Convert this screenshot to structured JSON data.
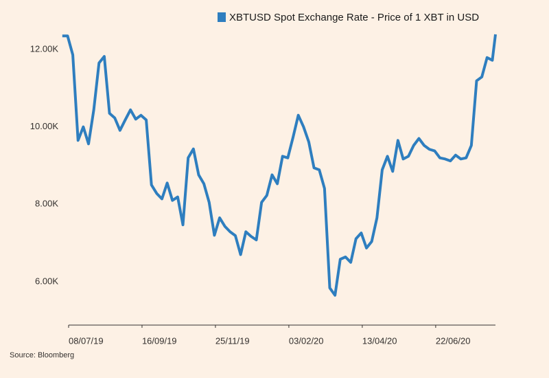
{
  "chart_data": {
    "type": "line",
    "legend_position": "top",
    "source": "Source: Bloomberg",
    "x": [
      "02/07/19",
      "07/07/19",
      "12/07/19",
      "17/07/19",
      "22/07/19",
      "27/07/19",
      "01/08/19",
      "06/08/19",
      "11/08/19",
      "16/08/19",
      "21/08/19",
      "26/08/19",
      "31/08/19",
      "05/09/19",
      "10/09/19",
      "15/09/19",
      "20/09/19",
      "25/09/19",
      "30/09/19",
      "05/10/19",
      "10/10/19",
      "15/10/19",
      "20/10/19",
      "25/10/19",
      "30/10/19",
      "04/11/19",
      "09/11/19",
      "14/11/19",
      "19/11/19",
      "24/11/19",
      "29/11/19",
      "04/12/19",
      "09/12/19",
      "14/12/19",
      "19/12/19",
      "24/12/19",
      "29/12/19",
      "03/01/20",
      "08/01/20",
      "13/01/20",
      "18/01/20",
      "23/01/20",
      "28/01/20",
      "02/02/20",
      "07/02/20",
      "12/02/20",
      "17/02/20",
      "22/02/20",
      "27/02/20",
      "03/03/20",
      "08/03/20",
      "13/03/20",
      "18/03/20",
      "23/03/20",
      "28/03/20",
      "02/04/20",
      "07/04/20",
      "12/04/20",
      "17/04/20",
      "22/04/20",
      "27/04/20",
      "02/05/20",
      "07/05/20",
      "12/05/20",
      "17/05/20",
      "22/05/20",
      "27/05/20",
      "01/06/20",
      "06/06/20",
      "11/06/20",
      "16/06/20",
      "21/06/20",
      "26/06/20",
      "01/07/20",
      "06/07/20",
      "11/07/20",
      "16/07/20",
      "21/07/20",
      "26/07/20",
      "31/07/20",
      "05/08/20",
      "10/08/20",
      "15/08/20",
      "18/08/20"
    ],
    "series": [
      {
        "name": "XBTUSD Spot Exchange Rate - Price of 1 XBT in USD",
        "color": "#2e7ebf",
        "values": [
          12350,
          12350,
          11860,
          9650,
          10000,
          9560,
          10440,
          11650,
          11820,
          10350,
          10230,
          9910,
          10180,
          10440,
          10200,
          10300,
          10180,
          8500,
          8280,
          8140,
          8550,
          8100,
          8190,
          7470,
          9200,
          9430,
          8760,
          8530,
          8050,
          7200,
          7650,
          7430,
          7290,
          7190,
          6700,
          7290,
          7170,
          7080,
          8050,
          8230,
          8760,
          8530,
          9240,
          9200,
          9730,
          10300,
          10000,
          9610,
          8940,
          8890,
          8410,
          5840,
          5650,
          6580,
          6640,
          6500,
          7110,
          7260,
          6870,
          7040,
          7650,
          8890,
          9240,
          8850,
          9650,
          9170,
          9240,
          9520,
          9700,
          9520,
          9420,
          9380,
          9200,
          9170,
          9120,
          9270,
          9170,
          9200,
          9520,
          11190,
          11290,
          11790,
          11720,
          12390
        ]
      }
    ],
    "xlim": [
      "02/07/19",
      "18/08/20"
    ],
    "xticks": [
      "08/07/19",
      "16/09/19",
      "25/11/19",
      "03/02/20",
      "13/04/20",
      "22/06/20"
    ],
    "ylim": [
      4880,
      12400
    ],
    "yticks": [
      {
        "value": 6000,
        "label": "6.00K"
      },
      {
        "value": 8000,
        "label": "8.00K"
      },
      {
        "value": 10000,
        "label": "10.00K"
      },
      {
        "value": 12000,
        "label": "12.00K"
      }
    ],
    "grid": false
  }
}
